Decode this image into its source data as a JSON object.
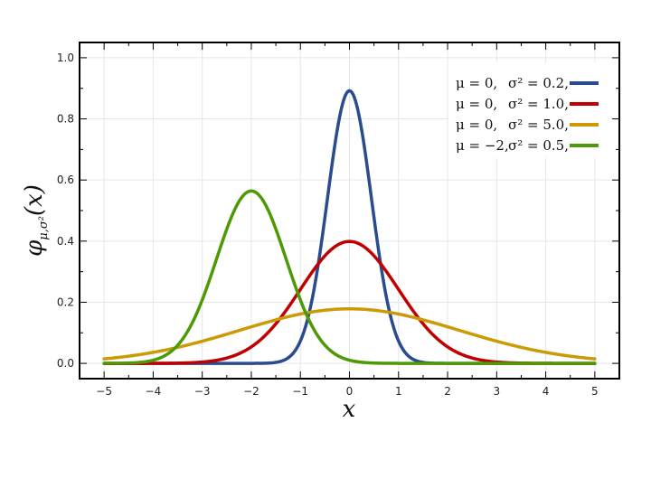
{
  "chart_data": {
    "type": "line",
    "xlabel": "x",
    "ylabel_main": "φ",
    "ylabel_sub": "μ,σ²",
    "ylabel_arg": "(x)",
    "xlim": [
      -5.5,
      5.5
    ],
    "ylim": [
      -0.05,
      1.05
    ],
    "xticks": [
      -5,
      -4,
      -3,
      -2,
      -1,
      0,
      1,
      2,
      3,
      4,
      5
    ],
    "xtick_labels": [
      "−5",
      "−4",
      "−3",
      "−2",
      "−1",
      "0",
      "1",
      "2",
      "3",
      "4",
      "5"
    ],
    "yticks": [
      0.0,
      0.2,
      0.4,
      0.6,
      0.8,
      1.0
    ],
    "ytick_labels": [
      "0.0",
      "0.2",
      "0.4",
      "0.6",
      "0.8",
      "1.0"
    ],
    "grid": true,
    "legend_position": "top-right",
    "series": [
      {
        "mu_label": "μ = 0,",
        "var_label": "σ² = 0.2,",
        "mu": 0,
        "variance": 0.2,
        "color": "#2a4b8d"
      },
      {
        "mu_label": "μ = 0,",
        "var_label": "σ² = 1.0,",
        "mu": 0,
        "variance": 1.0,
        "color": "#c00000"
      },
      {
        "mu_label": "μ = 0,",
        "var_label": "σ² = 5.0,",
        "mu": 0,
        "variance": 5.0,
        "color": "#cc9a06"
      },
      {
        "mu_label": "μ = −2,",
        "var_label": "σ² = 0.5,",
        "mu": -2,
        "variance": 0.5,
        "color": "#4e9a06"
      }
    ]
  }
}
